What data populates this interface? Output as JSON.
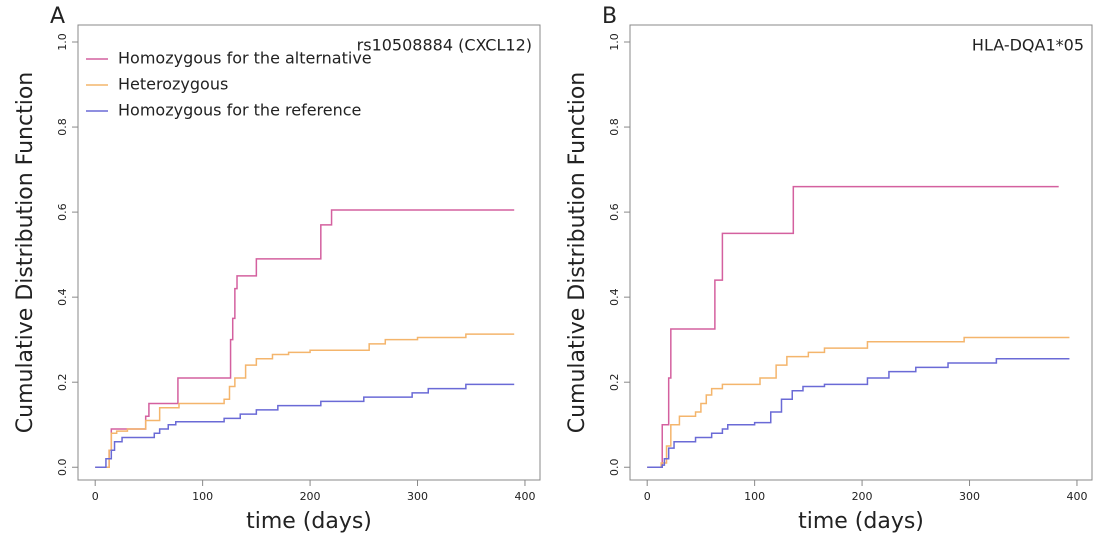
{
  "chart_data": [
    {
      "type": "line",
      "step": true,
      "panel_label": "A",
      "title": "rs10508884 (CXCL12)",
      "xlabel": "time (days)",
      "ylabel": "Cumulative Distribution Function",
      "xlim": [
        -16,
        414
      ],
      "ylim": [
        -0.03,
        1.04
      ],
      "xticks": [
        0,
        100,
        200,
        300,
        400
      ],
      "yticks": [
        {
          "value": 0,
          "label": "0.0"
        },
        {
          "value": 0.2,
          "label": "0.2"
        },
        {
          "value": 0.4,
          "label": "0.4"
        },
        {
          "value": 0.6,
          "label": "0.6"
        },
        {
          "value": 0.8,
          "label": "0.8"
        },
        {
          "value": 1,
          "label": "1.0"
        }
      ],
      "legend": "top-left",
      "series": [
        {
          "name": "Homozygous for the alternative",
          "color": "#d4609f",
          "x": [
            0,
            13,
            15,
            47,
            50,
            77,
            126,
            128,
            130,
            132,
            150,
            210,
            220,
            390
          ],
          "values": [
            0,
            0.04,
            0.09,
            0.12,
            0.15,
            0.21,
            0.3,
            0.35,
            0.42,
            0.45,
            0.49,
            0.57,
            0.605,
            0.605
          ]
        },
        {
          "name": "Heterozygous",
          "color": "#f4b56c",
          "x": [
            0,
            13,
            15,
            20,
            30,
            47,
            60,
            78,
            120,
            125,
            130,
            140,
            150,
            165,
            180,
            200,
            255,
            270,
            300,
            345,
            390
          ],
          "values": [
            0,
            0.04,
            0.08,
            0.085,
            0.09,
            0.11,
            0.14,
            0.15,
            0.16,
            0.19,
            0.21,
            0.24,
            0.255,
            0.265,
            0.27,
            0.275,
            0.29,
            0.3,
            0.305,
            0.313,
            0.313
          ]
        },
        {
          "name": "Homozygous for the reference",
          "color": "#6a6ad6",
          "x": [
            0,
            10,
            15,
            18,
            25,
            55,
            60,
            68,
            75,
            120,
            135,
            150,
            170,
            210,
            250,
            295,
            310,
            345,
            390
          ],
          "values": [
            0,
            0.02,
            0.04,
            0.06,
            0.07,
            0.08,
            0.09,
            0.1,
            0.107,
            0.115,
            0.125,
            0.135,
            0.145,
            0.155,
            0.165,
            0.175,
            0.185,
            0.195,
            0.195
          ]
        }
      ]
    },
    {
      "type": "line",
      "step": true,
      "panel_label": "B",
      "title": "HLA-DQA1*05",
      "xlabel": "time (days)",
      "ylabel": "Cumulative Distribution Function",
      "xlim": [
        -16,
        414
      ],
      "ylim": [
        -0.03,
        1.04
      ],
      "xticks": [
        0,
        100,
        200,
        300,
        400
      ],
      "yticks": [
        {
          "value": 0,
          "label": "0.0"
        },
        {
          "value": 0.2,
          "label": "0.2"
        },
        {
          "value": 0.4,
          "label": "0.4"
        },
        {
          "value": 0.6,
          "label": "0.6"
        },
        {
          "value": 0.8,
          "label": "0.8"
        },
        {
          "value": 1,
          "label": "1.0"
        }
      ],
      "series": [
        {
          "color": "#d4609f",
          "x": [
            0,
            14,
            20,
            22,
            63,
            70,
            136,
            383
          ],
          "values": [
            0,
            0.1,
            0.21,
            0.325,
            0.44,
            0.55,
            0.66,
            0.66
          ]
        },
        {
          "color": "#f4b56c",
          "x": [
            0,
            13,
            18,
            22,
            30,
            45,
            50,
            55,
            60,
            70,
            105,
            120,
            130,
            150,
            165,
            205,
            295,
            393
          ],
          "values": [
            0,
            0.01,
            0.05,
            0.1,
            0.12,
            0.13,
            0.15,
            0.17,
            0.185,
            0.195,
            0.21,
            0.24,
            0.26,
            0.27,
            0.28,
            0.295,
            0.305,
            0.305
          ]
        },
        {
          "color": "#6a6ad6",
          "x": [
            0,
            14,
            16,
            20,
            25,
            45,
            60,
            70,
            75,
            100,
            115,
            125,
            135,
            145,
            165,
            205,
            225,
            250,
            280,
            325,
            393
          ],
          "values": [
            0,
            0.005,
            0.02,
            0.045,
            0.06,
            0.07,
            0.08,
            0.09,
            0.1,
            0.105,
            0.13,
            0.16,
            0.18,
            0.19,
            0.195,
            0.21,
            0.225,
            0.235,
            0.245,
            0.255,
            0.255
          ]
        }
      ]
    }
  ]
}
